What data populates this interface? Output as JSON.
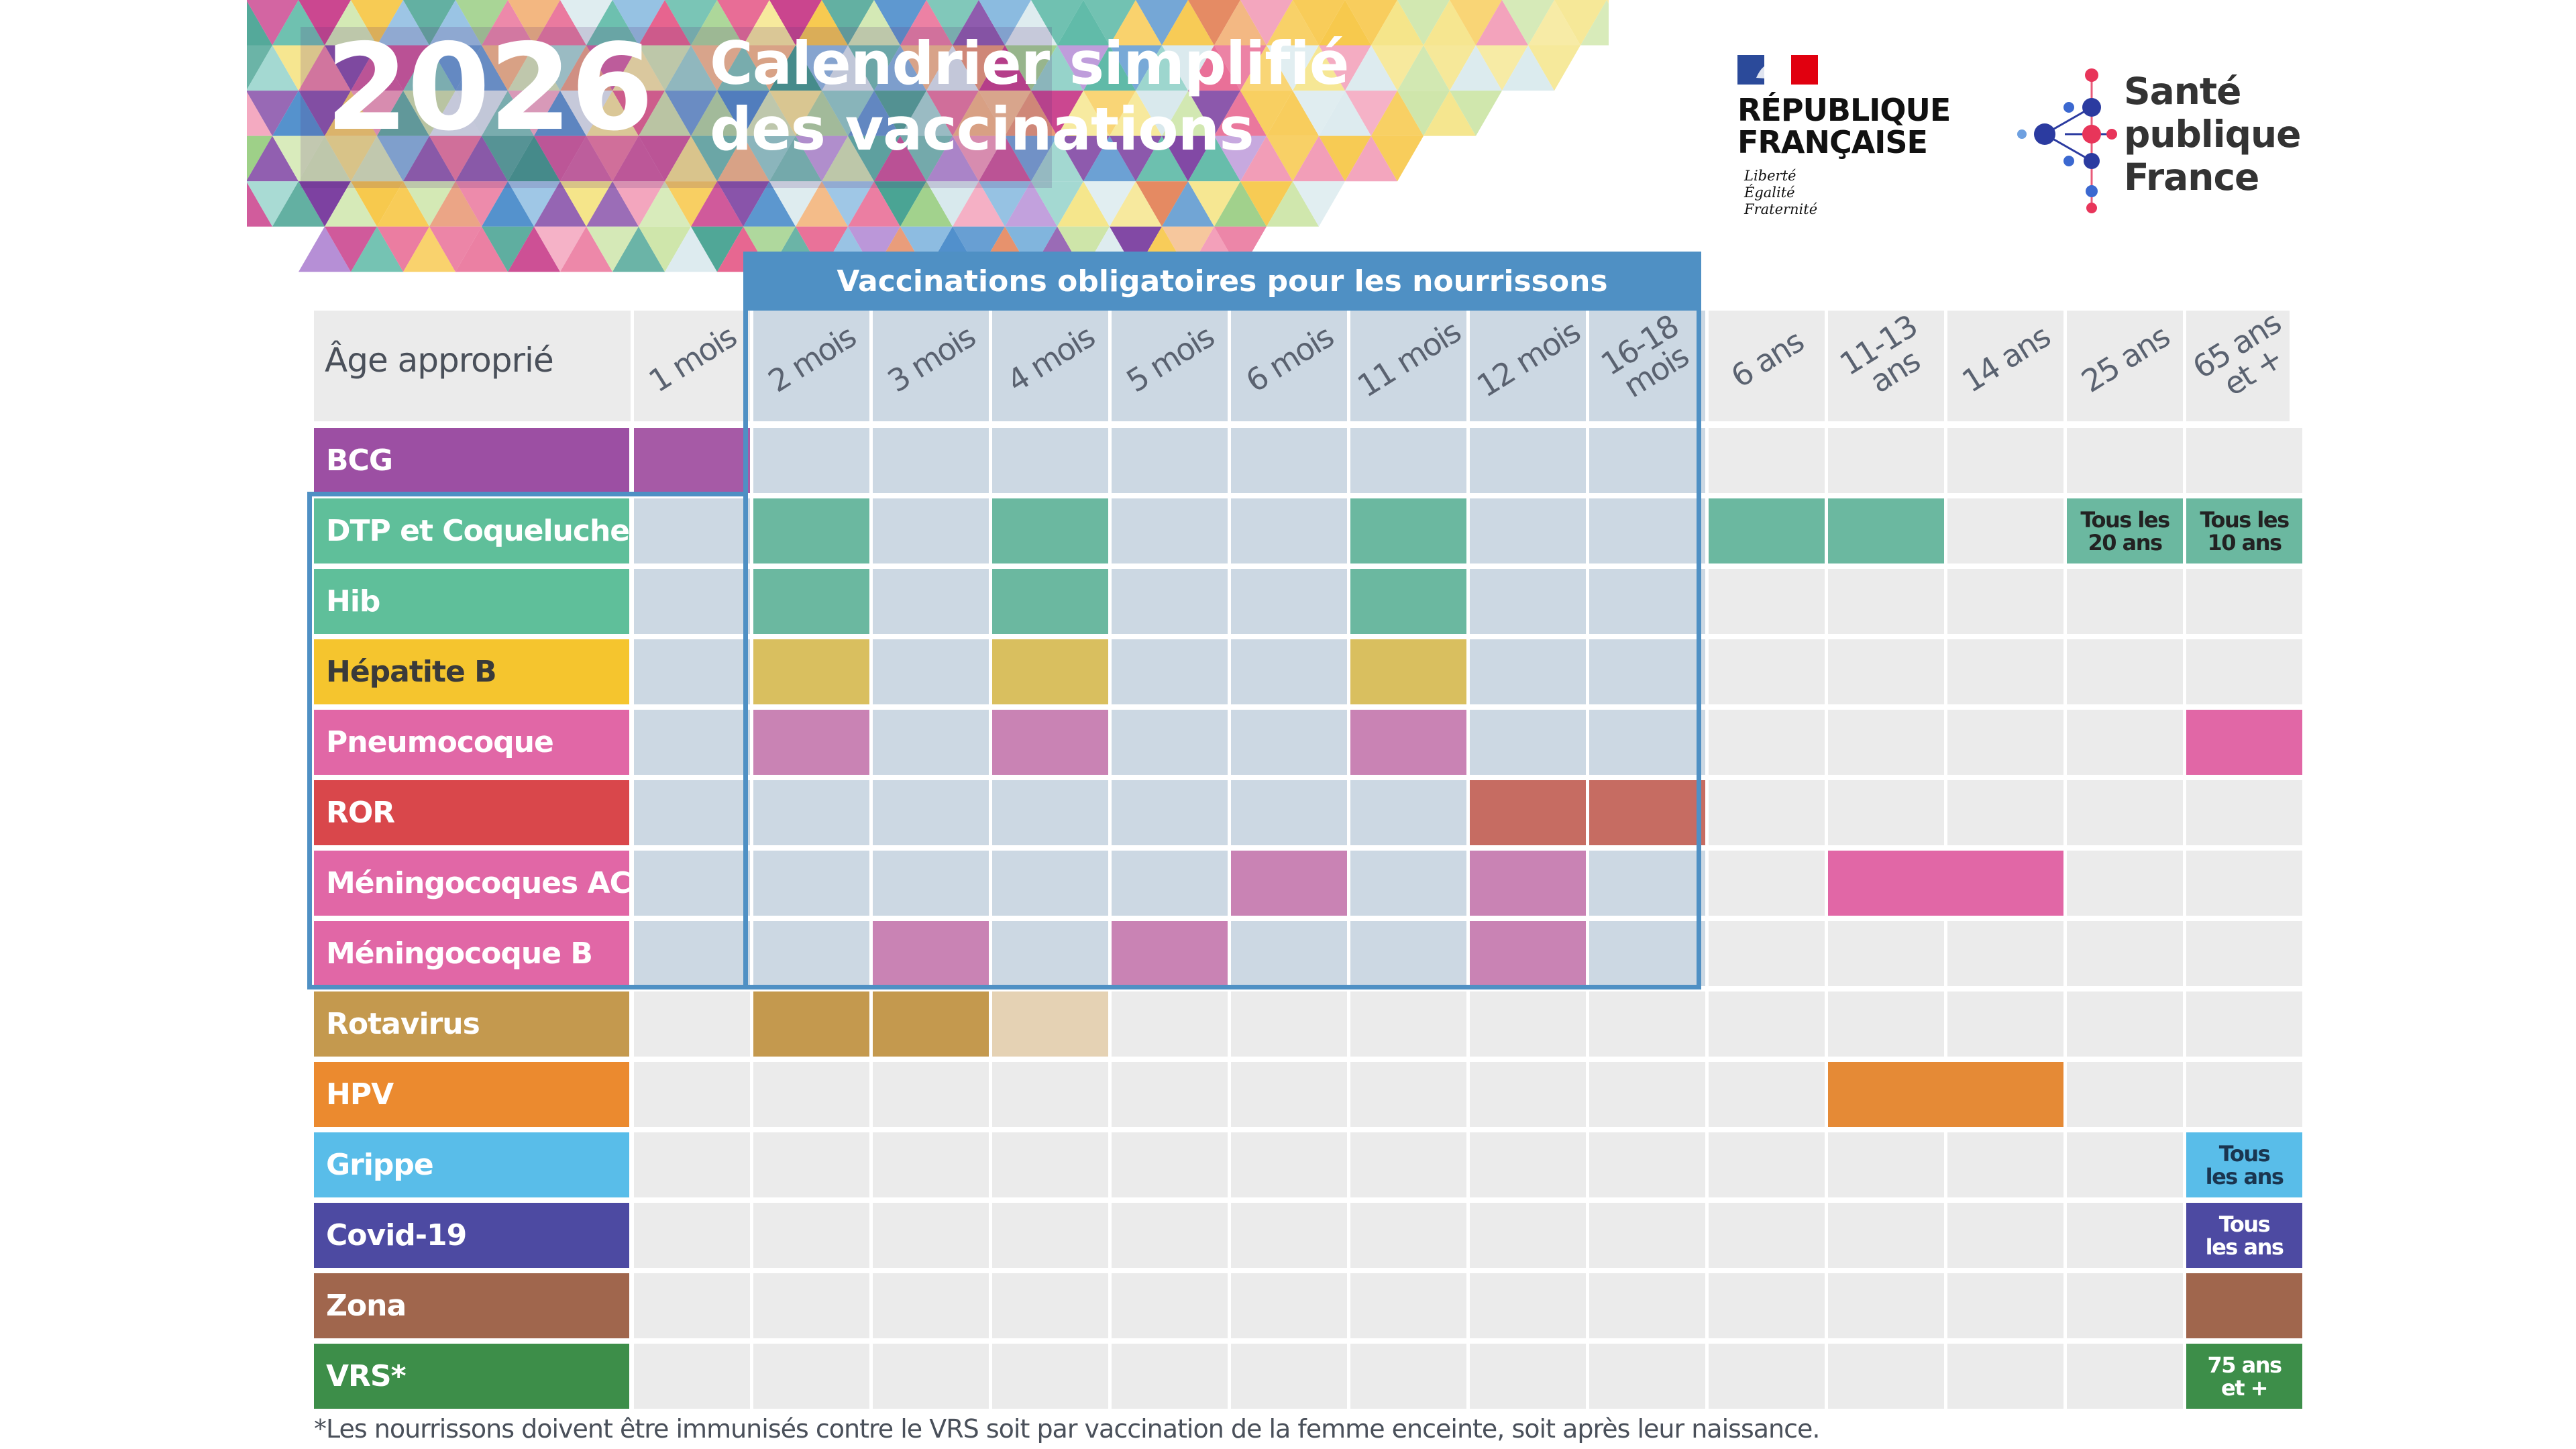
{
  "header": {
    "year": "2026",
    "title_line1": "Calendrier simplifié",
    "title_line2": "des vaccinations"
  },
  "logos": {
    "republique": {
      "line1": "RÉPUBLIQUE",
      "line2": "FRANÇAISE",
      "motto": [
        "Liberté",
        "Égalité",
        "Fraternité"
      ]
    },
    "sante": {
      "lines": [
        "Santé",
        "publique",
        "France"
      ]
    }
  },
  "mandatory_banner": "Vaccinations obligatoires pour les nourrissons",
  "age_column_label": "Âge approprié",
  "ages": [
    [
      "1 mois"
    ],
    [
      "2 mois"
    ],
    [
      "3 mois"
    ],
    [
      "4 mois"
    ],
    [
      "5 mois"
    ],
    [
      "6 mois"
    ],
    [
      "11 mois"
    ],
    [
      "12 mois"
    ],
    [
      "16-18",
      "mois"
    ],
    [
      "6 ans"
    ],
    [
      "11-13",
      "ans"
    ],
    [
      "14 ans"
    ],
    [
      "25 ans"
    ],
    [
      "65 ans",
      "et +"
    ]
  ],
  "vaccines": [
    {
      "label": "BCG",
      "color": "#9c4fa3",
      "dose": "#a65aa6",
      "cells": [
        0
      ]
    },
    {
      "label": "DTP et Coqueluche",
      "color": "#5fbf9a",
      "dose": "#6bb8a0",
      "cells": [
        1,
        3,
        6,
        9,
        10
      ],
      "notes": [
        {
          "col": 12,
          "lines": [
            "Tous les",
            "20 ans"
          ]
        },
        {
          "col": 13,
          "lines": [
            "Tous les",
            "10 ans"
          ]
        }
      ]
    },
    {
      "label": "Hib",
      "color": "#5fbf9a",
      "dose": "#6bb8a0",
      "cells": [
        1,
        3,
        6
      ]
    },
    {
      "label": "Hépatite B",
      "color": "#f5c52e",
      "dose": "#d9bf5f",
      "label_text": "#3a3a3a",
      "cells": [
        1,
        3,
        6
      ]
    },
    {
      "label": "Pneumocoque",
      "color": "#e167a6",
      "dose": "#c983b4",
      "cells": [
        1,
        3,
        6
      ],
      "extra": [
        {
          "col": 13,
          "color": "#e167a6"
        }
      ]
    },
    {
      "label": "ROR",
      "color": "#d9474b",
      "dose": "#c66c62",
      "cells": [
        7,
        8
      ]
    },
    {
      "label": "Méningocoques ACWY",
      "color": "#e167a6",
      "dose": "#c983b4",
      "cells": [
        5,
        7
      ],
      "span": {
        "from": 10,
        "to": 11,
        "color": "#e167a6"
      }
    },
    {
      "label": "Méningocoque B",
      "color": "#e167a6",
      "dose": "#c983b4",
      "cells": [
        2,
        4,
        7
      ]
    },
    {
      "label": "Rotavirus",
      "color": "#c4994e",
      "dose": "#c4994e",
      "cells": [
        1,
        2
      ],
      "light": [
        {
          "col": 3,
          "color": "#e5d2b4"
        }
      ]
    },
    {
      "label": "HPV",
      "color": "#eb8a2f",
      "dose": "#eb8a2f",
      "cells": [],
      "span": {
        "from": 10,
        "to": 11,
        "color": "#e58a36"
      }
    },
    {
      "label": "Grippe",
      "color": "#59bde9",
      "dose": "#59bde9",
      "cells": [],
      "notes": [
        {
          "col": 13,
          "lines": [
            "Tous",
            "les ans"
          ],
          "bg": "#59bde9",
          "text": "#1a3550"
        }
      ]
    },
    {
      "label": "Covid-19",
      "color": "#4d4aa2",
      "dose": "#4d4aa2",
      "cells": [],
      "notes": [
        {
          "col": 13,
          "lines": [
            "Tous",
            "les ans"
          ],
          "bg": "#4d4aa2",
          "text": "#ffffff"
        }
      ]
    },
    {
      "label": "Zona",
      "color": "#a0664d",
      "dose": "#a0664d",
      "cells": [],
      "extra": [
        {
          "col": 13,
          "color": "#a0664d"
        }
      ]
    },
    {
      "label": "VRS*",
      "color": "#3d8e49",
      "dose": "#3d8e49",
      "cells": [],
      "notes": [
        {
          "col": 13,
          "lines": [
            "75 ans",
            "et +"
          ],
          "bg": "#3d8e49",
          "text": "#ffffff"
        }
      ]
    }
  ],
  "mandatory_range": {
    "from_col": 1,
    "to_col": 8,
    "from_row": 1,
    "to_row": 7
  },
  "colors": {
    "empty": "#ebebeb",
    "mandatory_empty": "#ccd8e3",
    "frame": "#4f90c4"
  },
  "footnote": "*Les nourrissons doivent être immunisés contre le VRS soit par vaccination de la femme enceinte, soit après leur naissance."
}
